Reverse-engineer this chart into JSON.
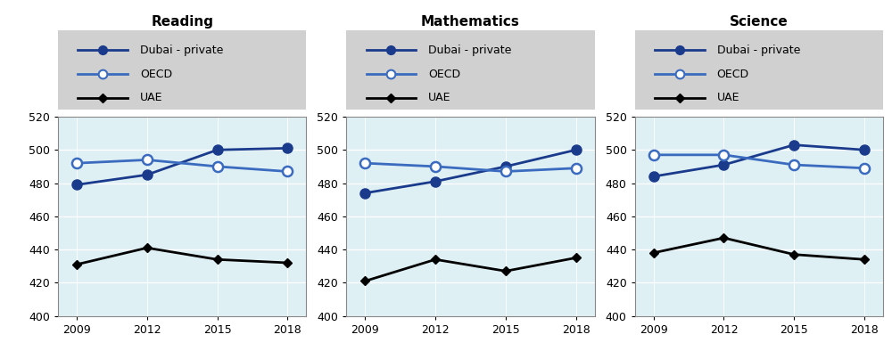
{
  "years": [
    2009,
    2012,
    2015,
    2018
  ],
  "reading": {
    "dubai_private": [
      479,
      485,
      500,
      501
    ],
    "oecd": [
      492,
      494,
      490,
      487
    ],
    "uae": [
      431,
      441,
      434,
      432
    ]
  },
  "mathematics": {
    "dubai_private": [
      474,
      481,
      490,
      500
    ],
    "oecd": [
      492,
      490,
      487,
      489
    ],
    "uae": [
      421,
      434,
      427,
      435
    ]
  },
  "science": {
    "dubai_private": [
      484,
      491,
      503,
      500
    ],
    "oecd": [
      497,
      497,
      491,
      489
    ],
    "uae": [
      438,
      447,
      437,
      434
    ]
  },
  "titles": [
    "Reading",
    "Mathematics",
    "Science"
  ],
  "legend_labels": [
    "Dubai - private",
    "OECD",
    "UAE"
  ],
  "dubai_color": "#1a3a8c",
  "oecd_color": "#3a6bbf",
  "uae_color": "#000000",
  "bg_color": "#dff0f5",
  "legend_bg": "#d0d0d0",
  "ylim": [
    400,
    520
  ],
  "yticks": [
    400,
    420,
    440,
    460,
    480,
    500,
    520
  ],
  "xticks": [
    2009,
    2012,
    2015,
    2018
  ],
  "line_width": 2.0,
  "marker_size": 8
}
